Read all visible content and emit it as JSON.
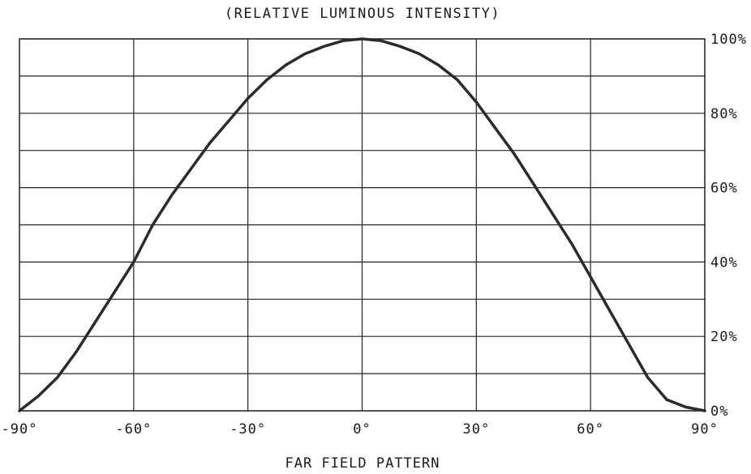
{
  "chart_data": {
    "type": "line",
    "title": "(RELATIVE LUMINOUS INTENSITY)",
    "xlabel": "FAR FIELD PATTERN",
    "ylabel": "",
    "xlim": [
      -90,
      90
    ],
    "ylim": [
      0,
      100
    ],
    "grid": true,
    "x_ticks": [
      -90,
      -60,
      -30,
      0,
      30,
      60,
      90
    ],
    "x_tick_labels": [
      "-90°",
      "-60°",
      "-30°",
      "0°",
      "30°",
      "60°",
      "90°"
    ],
    "y_ticks": [
      0,
      20,
      40,
      60,
      80,
      100
    ],
    "y_tick_labels": [
      "0%",
      "20%",
      "40%",
      "60%",
      "80%",
      "100%"
    ],
    "y_axis_side": "right",
    "series": [
      {
        "x": [
          -90,
          -85,
          -80,
          -75,
          -70,
          -65,
          -60,
          -55,
          -50,
          -45,
          -40,
          -35,
          -30,
          -25,
          -20,
          -15,
          -10,
          -5,
          0,
          5,
          10,
          15,
          20,
          25,
          30,
          35,
          40,
          45,
          50,
          55,
          60,
          65,
          70,
          75,
          80,
          85,
          90
        ],
        "values": [
          0,
          4,
          9,
          16,
          24,
          32,
          40,
          50,
          58,
          65,
          72,
          78,
          84,
          89,
          93,
          96,
          98,
          99.5,
          100,
          99.5,
          98,
          96,
          93,
          89,
          83,
          76,
          69,
          61,
          53,
          45,
          36,
          27,
          18,
          9,
          3,
          1,
          0
        ]
      }
    ]
  }
}
